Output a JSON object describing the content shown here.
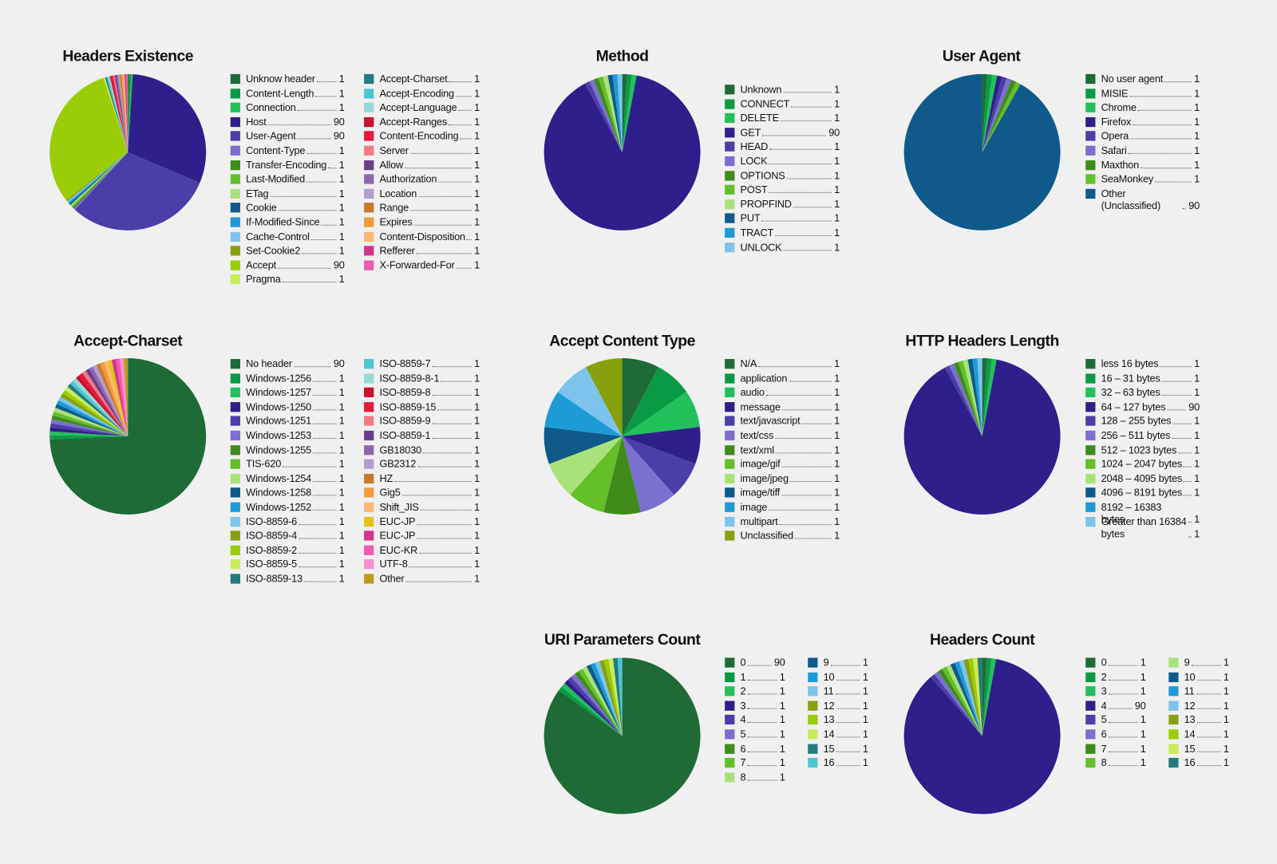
{
  "chart_data": [
    {
      "type": "pie",
      "title": "Headers Existence",
      "categories": [
        "Unknow header",
        "Content-Length",
        "Connection",
        "Host",
        "User-Agent",
        "Content-Type",
        "Transfer-Encoding",
        "Last-Modified",
        "ETag",
        "Cookie",
        "If-Modified-Since",
        "Cache-Control",
        "Set-Cookie2",
        "Accept",
        "Pragma",
        "Accept-Charset",
        "Accept-Encoding",
        "Accept-Language",
        "Accept-Ranges",
        "Content-Encoding",
        "Server",
        "Allow",
        "Authorization",
        "Location",
        "Range",
        "Expires",
        "Content-Disposition",
        "Refferer",
        "X-Forwarded-For"
      ],
      "values": [
        1,
        1,
        1,
        90,
        90,
        1,
        1,
        1,
        1,
        1,
        1,
        1,
        1,
        90,
        1,
        1,
        1,
        1,
        1,
        1,
        1,
        1,
        1,
        1,
        1,
        1,
        1,
        1,
        1
      ],
      "colors": [
        "#1e6b37",
        "#0a9a45",
        "#21c05a",
        "#2e1f8a",
        "#4b3ea8",
        "#7b6fd0",
        "#3f8c1b",
        "#63bf2a",
        "#a9e27a",
        "#0f5a8a",
        "#1e9bd7",
        "#7cc4ec",
        "#86a010",
        "#9acd05",
        "#c8ec5a",
        "#257a80",
        "#4ec6d2",
        "#95d9d6",
        "#c8102e",
        "#e8173e",
        "#f07a84",
        "#6a3e8c",
        "#8f65b0",
        "#b49ccc",
        "#c77a2a",
        "#f39a3a",
        "#fbb874",
        "#d6338a",
        "#f05aae"
      ]
    },
    {
      "type": "pie",
      "title": "Method",
      "categories": [
        "Unknown",
        "CONNECT",
        "DELETE",
        "GET",
        "HEAD",
        "LOCK",
        "OPTIONS",
        "POST",
        "PROPFIND",
        "PUT",
        "TRACT",
        "UNLOCK"
      ],
      "values": [
        1,
        1,
        1,
        90,
        1,
        1,
        1,
        1,
        1,
        1,
        1,
        1
      ],
      "colors": [
        "#1e6b37",
        "#0a9a45",
        "#21c05a",
        "#2e1f8a",
        "#4b3ea8",
        "#7b6fd0",
        "#3f8c1b",
        "#63bf2a",
        "#a9e27a",
        "#0f5a8a",
        "#1e9bd7",
        "#7cc4ec"
      ]
    },
    {
      "type": "pie",
      "title": "User Agent",
      "categories": [
        "No user agent",
        "MISIE",
        "Chrome",
        "Firefox",
        "Opera",
        "Safari",
        "Maxthon",
        "SeaMonkey",
        "Other (Unclassified)"
      ],
      "values": [
        1,
        1,
        1,
        1,
        1,
        1,
        1,
        1,
        90
      ],
      "colors": [
        "#1e6b37",
        "#0a9a45",
        "#21c05a",
        "#2e1f8a",
        "#4b3ea8",
        "#7b6fd0",
        "#3f8c1b",
        "#63bf2a",
        "#0f5a8a"
      ]
    },
    {
      "type": "pie",
      "title": "Accept-Charset",
      "categories": [
        "No header",
        "Windows-1256",
        "Windows-1257",
        "Windows-1250",
        "Windows-1251",
        "Windows-1253",
        "Windows-1255",
        "TIS-620",
        "Windows-1254",
        "Windows-1258",
        "Windows-1252",
        "ISO-8859-6",
        "ISO-8859-4",
        "ISO-8859-2",
        "ISO-8859-5",
        "ISO-8859-13",
        "ISO-8859-7",
        "ISO-8859-8-1",
        "ISO-8859-8",
        "ISO-8859-15",
        "ISO-8859-9",
        "ISO-8859-1",
        "GB18030",
        "GB2312",
        "HZ",
        "Gig5",
        "Shift_JIS",
        "EUC-JP",
        "EUC-JP",
        "EUC-KR",
        "UTF-8",
        "Other"
      ],
      "values": [
        90,
        1,
        1,
        1,
        1,
        1,
        1,
        1,
        1,
        1,
        1,
        1,
        1,
        1,
        1,
        1,
        1,
        1,
        1,
        1,
        1,
        1,
        1,
        1,
        1,
        1,
        1,
        1,
        1,
        1,
        1,
        1
      ],
      "colors": [
        "#1e6b37",
        "#0a9a45",
        "#21c05a",
        "#2e1f8a",
        "#4b3ea8",
        "#7b6fd0",
        "#3f8c1b",
        "#63bf2a",
        "#a9e27a",
        "#0f5a8a",
        "#1e9bd7",
        "#7cc4ec",
        "#86a010",
        "#9acd05",
        "#c8ec5a",
        "#257a80",
        "#4ec6d2",
        "#95d9d6",
        "#c8102e",
        "#e8173e",
        "#f07a84",
        "#6a3e8c",
        "#8f65b0",
        "#b49ccc",
        "#c77a2a",
        "#f39a3a",
        "#fbb874",
        "#e3c414",
        "#d6338a",
        "#f05aae",
        "#f98fcf",
        "#c09a1c"
      ]
    },
    {
      "type": "pie",
      "title": "Accept Content Type",
      "categories": [
        "N/A",
        "application",
        "audio",
        "message",
        "text/javascript",
        "text/css",
        "text/xml",
        "image/gif",
        "image/jpeg",
        "image/tiff",
        "image",
        "multipart",
        "Unclassified"
      ],
      "values": [
        1,
        1,
        1,
        1,
        1,
        1,
        1,
        1,
        1,
        1,
        1,
        1,
        1
      ],
      "colors": [
        "#1e6b37",
        "#0a9a45",
        "#21c05a",
        "#2e1f8a",
        "#4b3ea8",
        "#7b6fd0",
        "#3f8c1b",
        "#63bf2a",
        "#a9e27a",
        "#0f5a8a",
        "#1e9bd7",
        "#7cc4ec",
        "#86a010"
      ]
    },
    {
      "type": "pie",
      "title": "HTTP Headers Length",
      "categories": [
        "less 16 bytes",
        "16 – 31 bytes",
        "32 – 63 bytes",
        "64 – 127 bytes",
        "128 – 255 bytes",
        "256 – 511 bytes",
        "512 – 1023 bytes",
        "1024 – 2047 bytes",
        "2048 – 4095 bytes",
        "4096 – 8191 bytes",
        "8192 – 16383 bytes",
        "Greater than 16384 bytes"
      ],
      "values": [
        1,
        1,
        1,
        90,
        1,
        1,
        1,
        1,
        1,
        1,
        1,
        1
      ],
      "colors": [
        "#1e6b37",
        "#0a9a45",
        "#21c05a",
        "#2e1f8a",
        "#4b3ea8",
        "#7b6fd0",
        "#3f8c1b",
        "#63bf2a",
        "#a9e27a",
        "#0f5a8a",
        "#1e9bd7",
        "#7cc4ec"
      ]
    },
    {
      "type": "pie",
      "title": "URI Parameters Count",
      "categories": [
        "0",
        "1",
        "2",
        "3",
        "4",
        "5",
        "6",
        "7",
        "8",
        "9",
        "10",
        "11",
        "12",
        "13",
        "14",
        "15",
        "16"
      ],
      "values": [
        90,
        1,
        1,
        1,
        1,
        1,
        1,
        1,
        1,
        1,
        1,
        1,
        1,
        1,
        1,
        1,
        1
      ],
      "colors": [
        "#1e6b37",
        "#0a9a45",
        "#21c05a",
        "#2e1f8a",
        "#4b3ea8",
        "#7b6fd0",
        "#3f8c1b",
        "#63bf2a",
        "#a9e27a",
        "#0f5a8a",
        "#1e9bd7",
        "#7cc4ec",
        "#86a010",
        "#9acd05",
        "#c8ec5a",
        "#257a80",
        "#4ec6d2"
      ]
    },
    {
      "type": "pie",
      "title": "Headers Count",
      "categories": [
        "0",
        "2",
        "3",
        "4",
        "5",
        "6",
        "7",
        "8",
        "9",
        "10",
        "11",
        "12",
        "13",
        "14",
        "15",
        "16"
      ],
      "values": [
        1,
        1,
        1,
        90,
        1,
        1,
        1,
        1,
        1,
        1,
        1,
        1,
        1,
        1,
        1,
        1
      ],
      "colors": [
        "#1e6b37",
        "#0a9a45",
        "#21c05a",
        "#2e1f8a",
        "#4b3ea8",
        "#7b6fd0",
        "#3f8c1b",
        "#63bf2a",
        "#a9e27a",
        "#0f5a8a",
        "#1e9bd7",
        "#7cc4ec",
        "#86a010",
        "#9acd05",
        "#c8ec5a",
        "#257a80"
      ]
    }
  ]
}
